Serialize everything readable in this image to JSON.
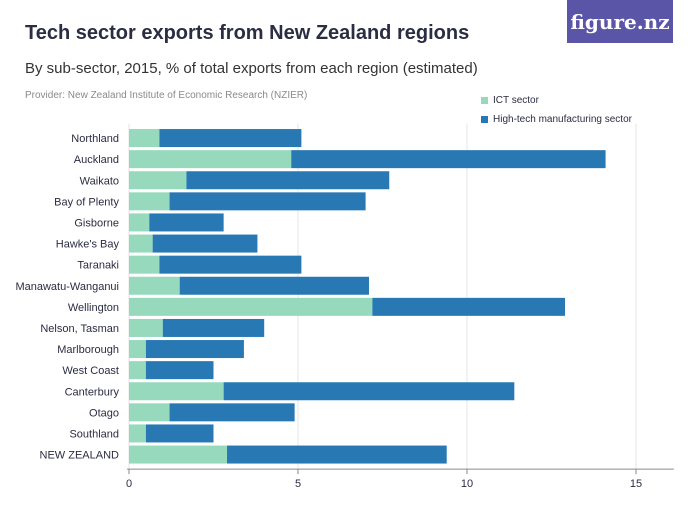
{
  "title": "Tech sector exports from New Zealand regions",
  "subtitle": "By sub-sector, 2015, % of total exports from each region (estimated)",
  "provider": "Provider: New Zealand Institute of Economic Research (NZIER)",
  "logo_text": "figure.nz",
  "colors": {
    "ict": "#96d9bd",
    "hightech": "#2878b4",
    "logo_bg": "#5b55a8"
  },
  "legend": [
    {
      "label": "ICT sector",
      "color": "#96d9bd"
    },
    {
      "label": "High-tech manufacturing sector",
      "color": "#2878b4"
    }
  ],
  "chart_data": {
    "type": "bar",
    "orientation": "horizontal",
    "stacked": true,
    "categories": [
      "Northland",
      "Auckland",
      "Waikato",
      "Bay of Plenty",
      "Gisborne",
      "Hawke's Bay",
      "Taranaki",
      "Manawatu-Wanganui",
      "Wellington",
      "Nelson, Tasman",
      "Marlborough",
      "West Coast",
      "Canterbury",
      "Otago",
      "Southland",
      "NEW ZEALAND"
    ],
    "series": [
      {
        "name": "ICT sector",
        "values": [
          0.9,
          4.8,
          1.7,
          1.2,
          0.6,
          0.7,
          0.9,
          1.5,
          7.2,
          1.0,
          0.5,
          0.5,
          2.8,
          1.2,
          0.5,
          2.9
        ]
      },
      {
        "name": "High-tech manufacturing sector",
        "values": [
          4.2,
          9.3,
          6.0,
          5.8,
          2.2,
          3.1,
          4.2,
          5.6,
          5.7,
          3.0,
          2.9,
          2.0,
          8.6,
          3.7,
          2.0,
          6.5
        ]
      }
    ],
    "xlim": [
      0,
      16
    ],
    "xticks": [
      0,
      5,
      10,
      15
    ],
    "grid": "vertical",
    "legend_position": "top-right"
  }
}
